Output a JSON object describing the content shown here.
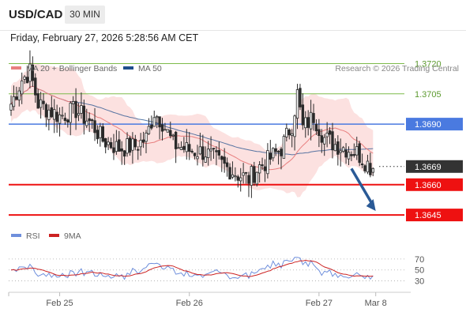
{
  "header": {
    "symbol": "USD/CAD",
    "timeframe": "30 MIN",
    "timestamp": "Friday, February 27, 2026 5:28:56 AM CET"
  },
  "colors": {
    "bollinger_line": "#e87f7f",
    "bollinger_fill": "#fbd7d6",
    "ma50": "#1f4e8c",
    "candle": "#2a2a2a",
    "support": "#ee1111",
    "resistance_green": "#7dbb4a",
    "resistance_blue": "#4a7ae0",
    "arrow": "#2a5a96",
    "rsi": "#6f8fdc",
    "rsi_ma": "#cc2222"
  },
  "chart_data": [
    {
      "type": "candlestick",
      "legend": [
        {
          "name": "MA 20 + Bollinger Bands",
          "color": "#e87f7f"
        },
        {
          "name": "MA 50",
          "color": "#1f4e8c"
        }
      ],
      "legend_position": "top-left",
      "copyright": "Research © 2026 Trading Central",
      "ylim": [
        1.3638,
        1.3728
      ],
      "x_ticks": [
        {
          "label": "Feb 25",
          "index": 18
        },
        {
          "label": "Feb 26",
          "index": 66
        },
        {
          "label": "Feb 27",
          "index": 114
        },
        {
          "label": "Mar 8",
          "index": 135
        }
      ],
      "levels": [
        {
          "label": "1.3720",
          "value": 1.372,
          "kind": "resistance-green"
        },
        {
          "label": "1.3705",
          "value": 1.3705,
          "kind": "resistance-green"
        },
        {
          "label": "1.3690",
          "value": 1.369,
          "kind": "pivot-blue"
        },
        {
          "label": "1.3669",
          "value": 1.3669,
          "kind": "last-price"
        },
        {
          "label": "1.3660",
          "value": 1.366,
          "kind": "support-red"
        },
        {
          "label": "1.3645",
          "value": 1.3645,
          "kind": "support-red"
        }
      ],
      "forecast_arrow": {
        "from_index": 126,
        "from_value": 1.3668,
        "to_index": 135,
        "to_value": 1.3647
      },
      "grid": false
    },
    {
      "type": "line",
      "legend": [
        {
          "name": "RSI",
          "color": "#6f8fdc"
        },
        {
          "name": "9MA",
          "color": "#cc2222"
        }
      ],
      "legend_position": "top-left",
      "ylim": [
        25,
        80
      ],
      "y_ticks": [
        "70",
        "50",
        "30"
      ]
    }
  ]
}
